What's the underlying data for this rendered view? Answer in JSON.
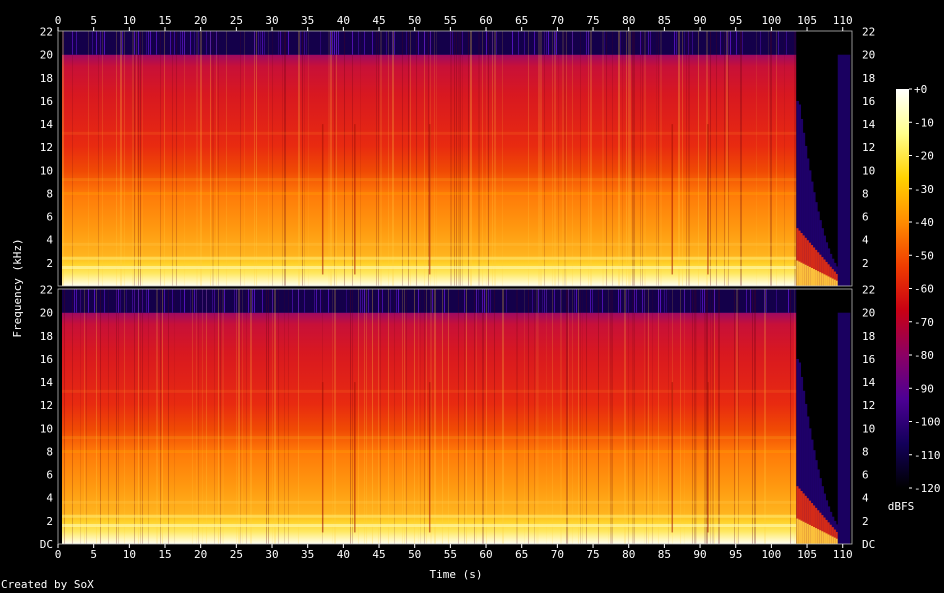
{
  "credit": "Created by SoX",
  "chart_data": {
    "type": "heatmap",
    "title": "",
    "xlabel": "Time (s)",
    "ylabel": "Frequency (kHz)",
    "xlim": [
      0,
      111.3
    ],
    "ylim": [
      0,
      22.05
    ],
    "x_ticks": [
      0,
      5,
      10,
      15,
      20,
      25,
      30,
      35,
      40,
      45,
      50,
      55,
      60,
      65,
      70,
      75,
      80,
      85,
      90,
      95,
      100,
      105,
      110
    ],
    "y_ticks": [
      {
        "value": 0,
        "label": "DC"
      },
      {
        "value": 2,
        "label": "2"
      },
      {
        "value": 4,
        "label": "4"
      },
      {
        "value": 6,
        "label": "6"
      },
      {
        "value": 8,
        "label": "8"
      },
      {
        "value": 10,
        "label": "10"
      },
      {
        "value": 12,
        "label": "12"
      },
      {
        "value": 14,
        "label": "14"
      },
      {
        "value": 16,
        "label": "16"
      },
      {
        "value": 18,
        "label": "18"
      },
      {
        "value": 20,
        "label": "20"
      },
      {
        "value": 22,
        "label": "22"
      }
    ],
    "channels": 2,
    "colorbar": {
      "label": "dBFS",
      "range": [
        -120,
        0
      ],
      "ticks": [
        "+0",
        "-10",
        "-20",
        "-30",
        "-40",
        "-50",
        "-60",
        "-70",
        "-80",
        "-90",
        "-100",
        "-110",
        "-120"
      ],
      "colors": [
        "#000000",
        "#13005a",
        "#4c0094",
        "#8c0064",
        "#c80014",
        "#f03c00",
        "#ff8c00",
        "#ffd200",
        "#ffff8c",
        "#ffffff"
      ]
    },
    "features": {
      "lowpass_cutoff_khz": 20,
      "high_energy_low_khz": 2.5,
      "audio_end_s": 103.5,
      "fade_end_s": 110.5
    }
  }
}
